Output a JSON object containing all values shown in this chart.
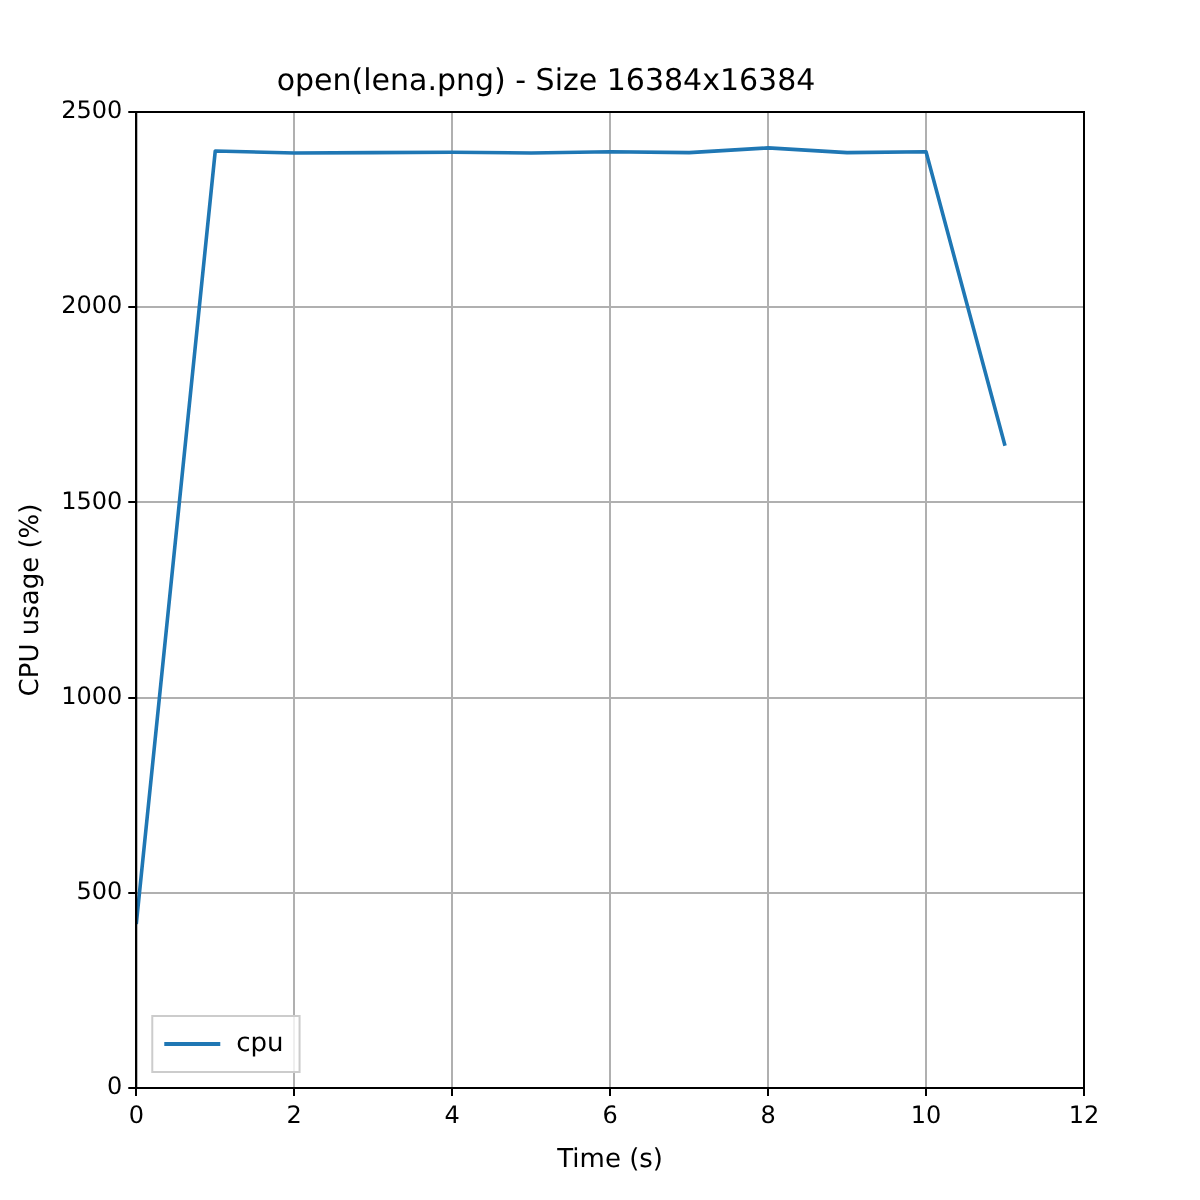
{
  "chart_data": {
    "type": "line",
    "title": "open(lena.png) - Size 16384x16384",
    "xlabel": "Time (s)",
    "ylabel": "CPU usage (%)",
    "x": [
      0,
      1,
      2,
      3,
      4,
      5,
      6,
      7,
      8,
      9,
      10,
      11
    ],
    "series": [
      {
        "name": "cpu",
        "color": "#1f77b4",
        "values": [
          420,
          2400,
          2395,
          2396,
          2397,
          2395,
          2398,
          2396,
          2408,
          2396,
          2398,
          1645
        ]
      }
    ],
    "xlim": [
      0,
      12
    ],
    "xticks": [
      0,
      2,
      4,
      6,
      8,
      10,
      12
    ],
    "ylim": [
      0,
      2500
    ],
    "yticks": [
      0,
      500,
      1000,
      1500,
      2000,
      2500
    ],
    "grid": true,
    "legend": "bottom left",
    "marker": "none",
    "line_style": "solid"
  }
}
